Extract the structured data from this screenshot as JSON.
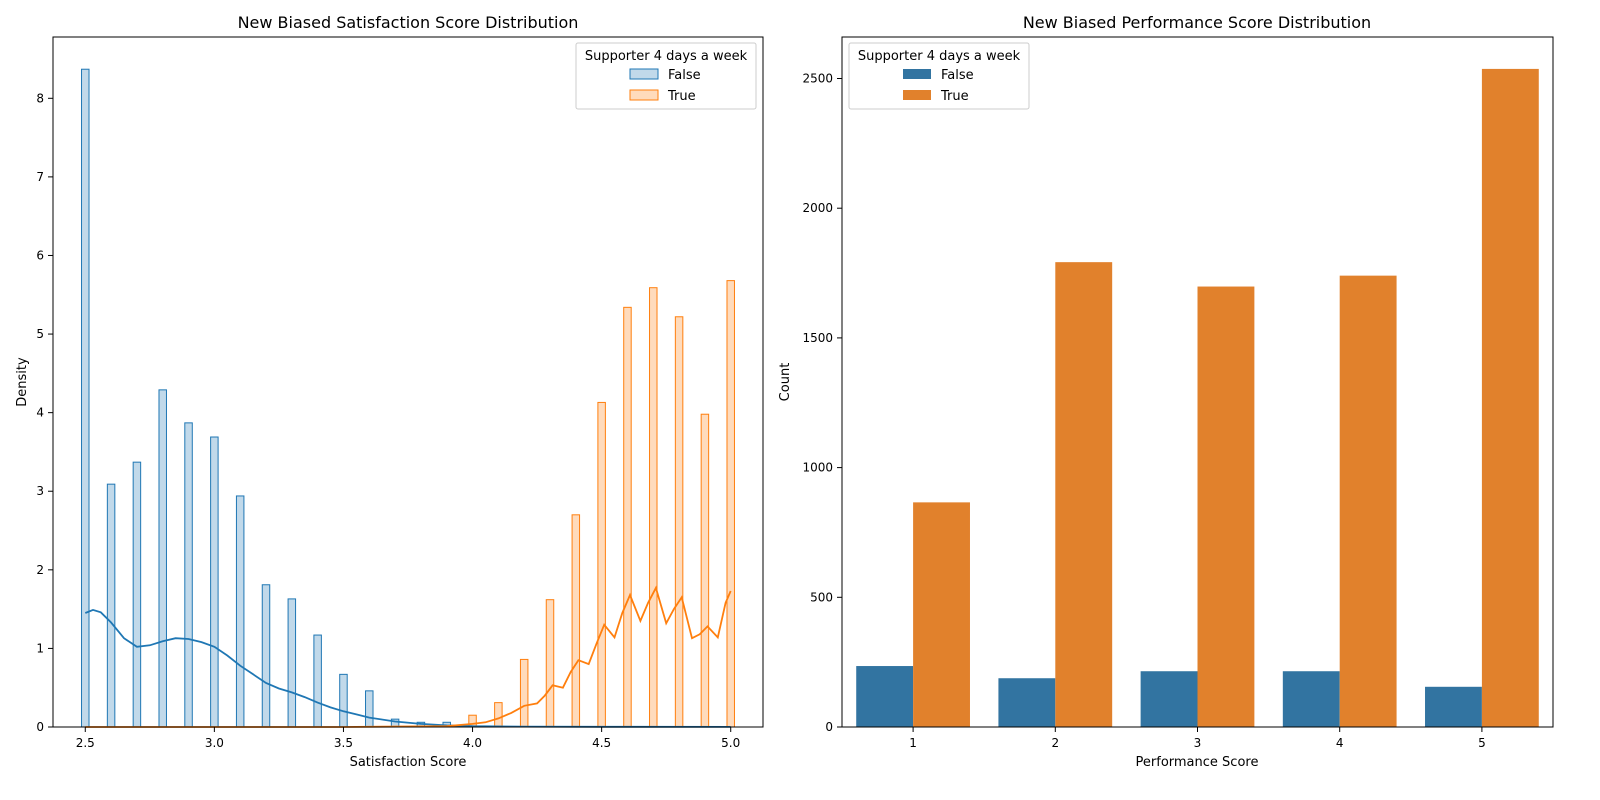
{
  "chart_data": [
    {
      "type": "histogram",
      "title": "New Biased Satisfaction Score Distribution",
      "xlabel": "Satisfaction Score",
      "ylabel": "Density",
      "xlim": [
        2.375,
        5.125
      ],
      "ylim": [
        0,
        8.78
      ],
      "xticks": [
        "2.5",
        "3.0",
        "3.5",
        "4.0",
        "4.5",
        "5.0"
      ],
      "yticks": [
        "0",
        "1",
        "2",
        "3",
        "4",
        "5",
        "6",
        "7",
        "8"
      ],
      "grid": false,
      "legend": {
        "title": "Supporter 4 days a week",
        "position": "top-right",
        "entries": [
          "False",
          "True"
        ]
      },
      "series": [
        {
          "name": "False",
          "color": "#1f77b4",
          "bins": [
            {
              "x": 2.5,
              "y": 8.37
            },
            {
              "x": 2.6,
              "y": 3.09
            },
            {
              "x": 2.7,
              "y": 3.37
            },
            {
              "x": 2.8,
              "y": 4.29
            },
            {
              "x": 2.9,
              "y": 3.87
            },
            {
              "x": 3.0,
              "y": 3.69
            },
            {
              "x": 3.1,
              "y": 2.94
            },
            {
              "x": 3.2,
              "y": 1.81
            },
            {
              "x": 3.3,
              "y": 1.63
            },
            {
              "x": 3.4,
              "y": 1.17
            },
            {
              "x": 3.5,
              "y": 0.67
            },
            {
              "x": 3.6,
              "y": 0.46
            },
            {
              "x": 3.7,
              "y": 0.1
            },
            {
              "x": 3.8,
              "y": 0.06
            },
            {
              "x": 3.9,
              "y": 0.06
            }
          ],
          "kde": [
            [
              2.5,
              1.45
            ],
            [
              2.53,
              1.49
            ],
            [
              2.56,
              1.46
            ],
            [
              2.6,
              1.33
            ],
            [
              2.65,
              1.13
            ],
            [
              2.7,
              1.02
            ],
            [
              2.75,
              1.04
            ],
            [
              2.8,
              1.09
            ],
            [
              2.85,
              1.13
            ],
            [
              2.9,
              1.12
            ],
            [
              2.95,
              1.08
            ],
            [
              3.0,
              1.02
            ],
            [
              3.05,
              0.91
            ],
            [
              3.1,
              0.78
            ],
            [
              3.15,
              0.67
            ],
            [
              3.2,
              0.56
            ],
            [
              3.25,
              0.49
            ],
            [
              3.3,
              0.44
            ],
            [
              3.35,
              0.38
            ],
            [
              3.4,
              0.31
            ],
            [
              3.45,
              0.25
            ],
            [
              3.5,
              0.2
            ],
            [
              3.55,
              0.16
            ],
            [
              3.6,
              0.12
            ],
            [
              3.7,
              0.07
            ],
            [
              3.8,
              0.04
            ],
            [
              3.9,
              0.02
            ],
            [
              4.0,
              0.01
            ],
            [
              4.2,
              0.005
            ],
            [
              4.5,
              0.002
            ],
            [
              5.0,
              0.001
            ]
          ]
        },
        {
          "name": "True",
          "color": "#ff7f0e",
          "bins": [
            {
              "x": 4.0,
              "y": 0.15
            },
            {
              "x": 4.1,
              "y": 0.31
            },
            {
              "x": 4.2,
              "y": 0.86
            },
            {
              "x": 4.3,
              "y": 1.62
            },
            {
              "x": 4.4,
              "y": 2.7
            },
            {
              "x": 4.5,
              "y": 4.13
            },
            {
              "x": 4.6,
              "y": 5.34
            },
            {
              "x": 4.7,
              "y": 5.59
            },
            {
              "x": 4.8,
              "y": 5.22
            },
            {
              "x": 4.9,
              "y": 3.98
            },
            {
              "x": 5.0,
              "y": 5.68
            }
          ],
          "kde": [
            [
              2.5,
              0.0
            ],
            [
              3.5,
              0.0
            ],
            [
              3.9,
              0.01
            ],
            [
              4.0,
              0.04
            ],
            [
              4.05,
              0.06
            ],
            [
              4.1,
              0.11
            ],
            [
              4.15,
              0.18
            ],
            [
              4.2,
              0.27
            ],
            [
              4.25,
              0.3
            ],
            [
              4.28,
              0.4
            ],
            [
              4.31,
              0.53
            ],
            [
              4.35,
              0.5
            ],
            [
              4.38,
              0.7
            ],
            [
              4.41,
              0.85
            ],
            [
              4.45,
              0.8
            ],
            [
              4.48,
              1.06
            ],
            [
              4.51,
              1.3
            ],
            [
              4.55,
              1.14
            ],
            [
              4.58,
              1.45
            ],
            [
              4.61,
              1.68
            ],
            [
              4.65,
              1.35
            ],
            [
              4.68,
              1.58
            ],
            [
              4.71,
              1.77
            ],
            [
              4.75,
              1.32
            ],
            [
              4.78,
              1.5
            ],
            [
              4.81,
              1.65
            ],
            [
              4.85,
              1.13
            ],
            [
              4.88,
              1.18
            ],
            [
              4.91,
              1.28
            ],
            [
              4.95,
              1.14
            ],
            [
              4.98,
              1.58
            ],
            [
              5.0,
              1.73
            ]
          ]
        }
      ]
    },
    {
      "type": "bar",
      "title": "New Biased Performance Score Distribution",
      "xlabel": "Performance Score",
      "ylabel": "Count",
      "categories": [
        "1",
        "2",
        "3",
        "4",
        "5"
      ],
      "ylim": [
        0,
        2660
      ],
      "yticks": [
        "0",
        "500",
        "1000",
        "1500",
        "2000",
        "2500"
      ],
      "grid": false,
      "legend": {
        "title": "Supporter 4 days a week",
        "position": "top-left",
        "entries": [
          "False",
          "True"
        ]
      },
      "series": [
        {
          "name": "False",
          "color": "#3274a1",
          "values": [
            235,
            188,
            215,
            215,
            155
          ]
        },
        {
          "name": "True",
          "color": "#e1812c",
          "values": [
            866,
            1792,
            1698,
            1740,
            2537
          ]
        }
      ]
    }
  ]
}
